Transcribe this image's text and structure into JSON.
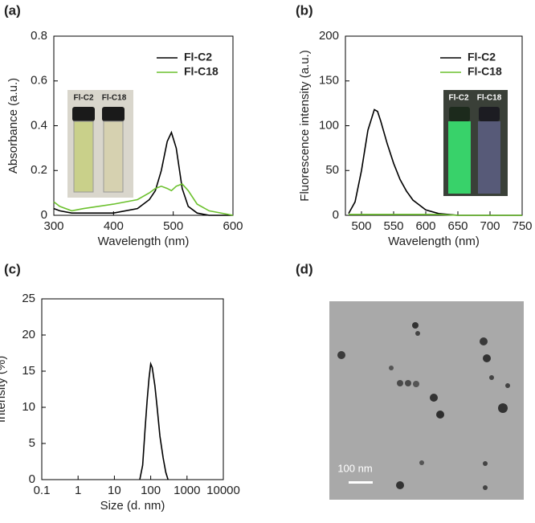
{
  "chart_data": [
    {
      "type": "line",
      "label": "(a)",
      "xlabel": "Wavelength (nm)",
      "ylabel": "Absorbance (a.u.)",
      "x": [
        300,
        310,
        330,
        350,
        400,
        440,
        460,
        470,
        480,
        490,
        497,
        505,
        515,
        525,
        540,
        560,
        600
      ],
      "series": [
        {
          "name": "Fl-C2",
          "color": "#000000",
          "values": [
            0.03,
            0.02,
            0.01,
            0.01,
            0.01,
            0.03,
            0.07,
            0.11,
            0.2,
            0.33,
            0.37,
            0.3,
            0.12,
            0.04,
            0.01,
            0,
            0
          ]
        },
        {
          "name": "Fl-C18",
          "color": "#6cc12e",
          "values": [
            0.06,
            0.04,
            0.02,
            0.03,
            0.05,
            0.07,
            0.1,
            0.12,
            0.13,
            0.12,
            0.11,
            0.13,
            0.14,
            0.11,
            0.05,
            0.02,
            0
          ]
        }
      ],
      "xlim": [
        300,
        600
      ],
      "xticks": [
        300,
        400,
        500,
        600
      ],
      "ylim": [
        0,
        0.8
      ],
      "yticks": [
        0,
        0.2,
        0.4,
        0.6,
        0.8
      ],
      "legend": "upper right",
      "inset_labels": [
        "Fl-C2",
        "Fl-C18"
      ]
    },
    {
      "type": "line",
      "label": "(b)",
      "xlabel": "Wavelength (nm)",
      "ylabel": "Fluorescence intensity (a.u.)",
      "x": [
        480,
        490,
        500,
        510,
        520,
        525,
        530,
        540,
        550,
        560,
        570,
        580,
        600,
        620,
        650,
        700,
        750
      ],
      "series": [
        {
          "name": "Fl-C2",
          "color": "#000000",
          "values": [
            2,
            15,
            50,
            95,
            118,
            116,
            105,
            80,
            58,
            40,
            27,
            17,
            6,
            2,
            0,
            0,
            0
          ]
        },
        {
          "name": "Fl-C18",
          "color": "#6cc12e",
          "values": [
            1,
            1,
            1,
            1,
            1,
            1,
            1,
            1,
            1,
            1,
            1,
            1,
            1,
            1,
            0,
            0,
            0
          ]
        }
      ],
      "xlim": [
        475,
        750
      ],
      "xticks": [
        500,
        550,
        600,
        650,
        700,
        750
      ],
      "ylim": [
        0,
        200
      ],
      "yticks": [
        0,
        50,
        100,
        150,
        200
      ],
      "legend": "upper right",
      "inset_labels": [
        "Fl-C2",
        "Fl-C18"
      ]
    },
    {
      "type": "line",
      "label": "(c)",
      "xlabel": "Size (d. nm)",
      "ylabel": "Intensity (%)",
      "xscale": "log",
      "x": [
        50,
        60,
        70,
        80,
        90,
        100,
        110,
        130,
        150,
        180,
        220,
        260,
        300
      ],
      "series": [
        {
          "color": "#000000",
          "values": [
            0,
            2,
            7,
            11,
            14,
            16,
            15.5,
            13,
            10,
            6,
            3,
            1,
            0
          ]
        }
      ],
      "xlim": [
        0.1,
        10000
      ],
      "xticks": [
        0.1,
        1,
        10,
        100,
        1000,
        10000
      ],
      "ylim": [
        0,
        25
      ],
      "yticks": [
        0,
        5,
        10,
        15,
        20,
        25
      ]
    },
    {
      "type": "image",
      "label": "(d)",
      "scale_bar": "100 nm"
    }
  ]
}
